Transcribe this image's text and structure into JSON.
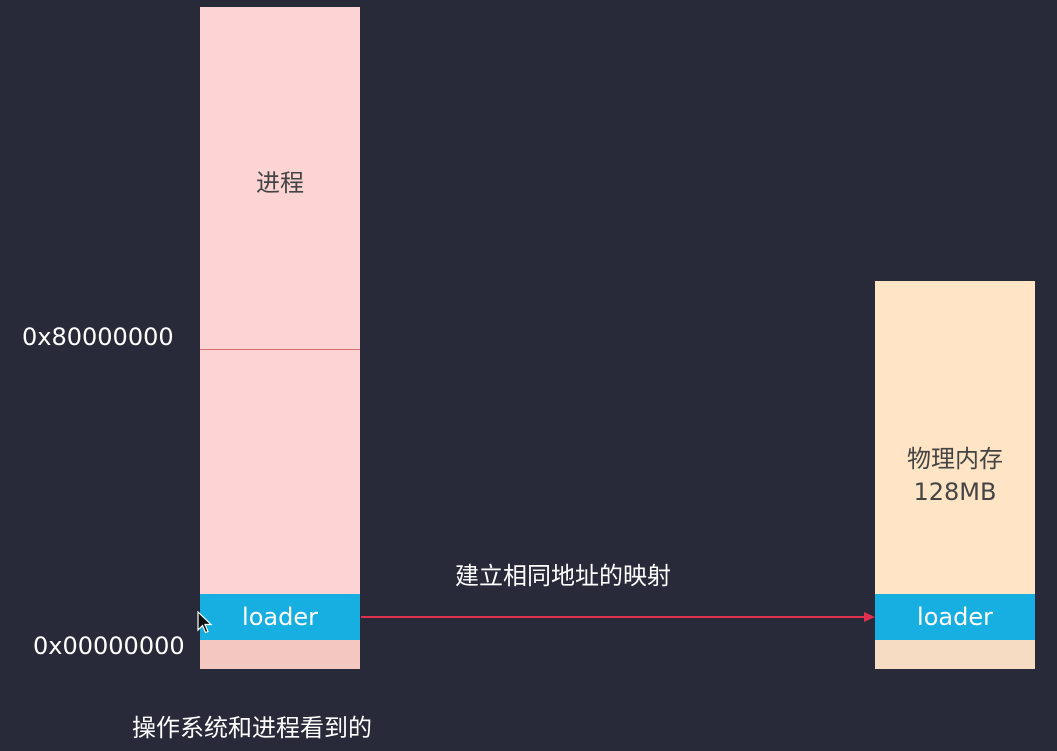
{
  "virtual_space": {
    "upper_label": "进程",
    "loader_label": "loader"
  },
  "addresses": {
    "high": "0x80000000",
    "low": "0x00000000"
  },
  "physical_memory": {
    "title": "物理内存",
    "size": "128MB",
    "loader_label": "loader"
  },
  "mapping": {
    "label": "建立相同地址的映射"
  },
  "caption": "操作系统和进程看到的",
  "colors": {
    "background": "#282a3a",
    "virtual_fill": "#fdd3d3",
    "physical_fill": "#ffe5c6",
    "loader_fill": "#17aee2",
    "arrow": "#e0304e"
  },
  "icons": {
    "cursor": "mouse-pointer-icon"
  }
}
